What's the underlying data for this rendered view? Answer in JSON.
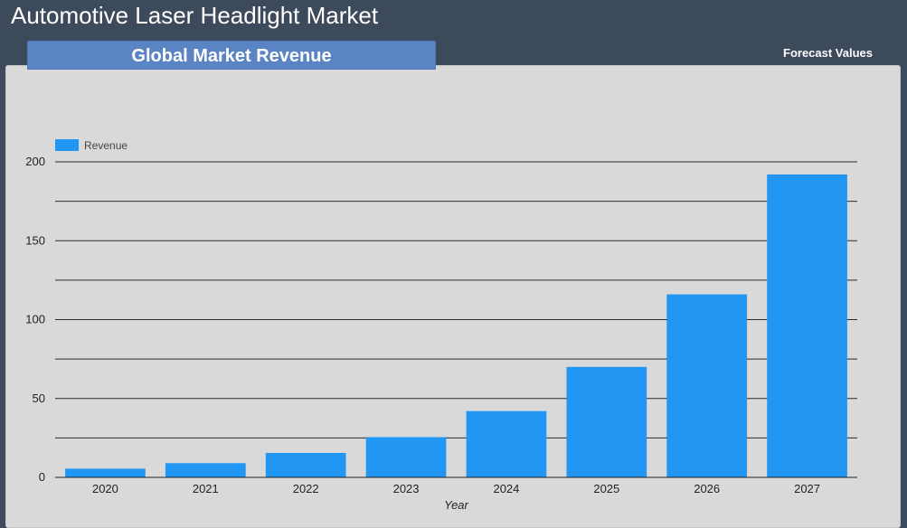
{
  "header": {
    "title": "Automotive Laser Headlight Market"
  },
  "panel": {
    "tab_label": "Global Market Revenue",
    "forecast_label": "Forecast Values"
  },
  "colors": {
    "background": "#3d4a5c",
    "panel": "#d9d9d9",
    "tab": "#5b84c4",
    "bar": "#2196f3"
  },
  "chart_data": {
    "type": "bar",
    "title": "",
    "xlabel": "Year",
    "ylabel": "",
    "categories": [
      "2020",
      "2021",
      "2022",
      "2023",
      "2024",
      "2025",
      "2026",
      "2027"
    ],
    "series": [
      {
        "name": "Revenue",
        "values": [
          5.5,
          9,
          15.5,
          25.5,
          42,
          70,
          116,
          192
        ]
      }
    ],
    "ylim": [
      0,
      200
    ],
    "yticks": [
      "0",
      "50",
      "100",
      "150",
      "200"
    ],
    "grid": true,
    "legend_position": "top-left"
  }
}
